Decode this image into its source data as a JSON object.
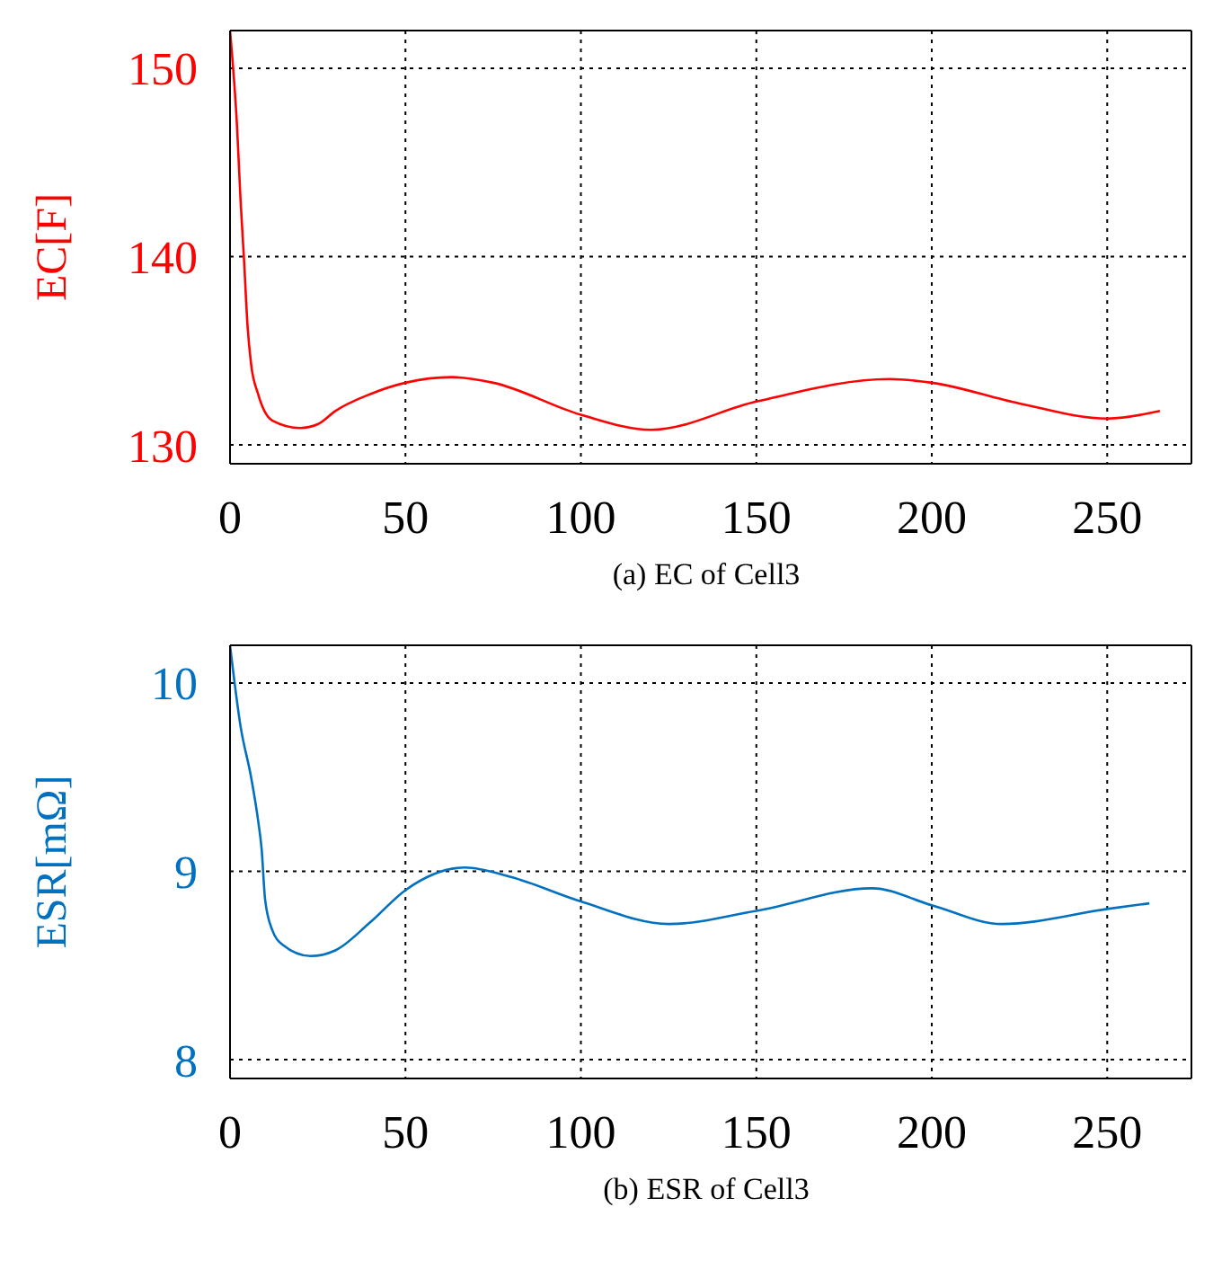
{
  "chart_data": [
    {
      "type": "line",
      "x": [
        0,
        2,
        3,
        4,
        5,
        6,
        8,
        12,
        20,
        25,
        30,
        40,
        50,
        63,
        75,
        100,
        120,
        150,
        188,
        200,
        225,
        250,
        265
      ],
      "series": [
        {
          "color": "#ff0000",
          "values": [
            152,
            146.9,
            143,
            139.8,
            136.3,
            134.3,
            132.7,
            131.3,
            130.9,
            131.1,
            131.8,
            132.7,
            133.3,
            133.6,
            133.3,
            131.6,
            130.8,
            132.3,
            133.5,
            133.3,
            132.2,
            131.4,
            131.8
          ]
        }
      ],
      "xlim": [
        0,
        274
      ],
      "xticks": [
        0,
        50,
        100,
        150,
        200,
        250
      ],
      "ylim": [
        129,
        152
      ],
      "yticks": [
        130,
        140,
        150
      ],
      "ylabel": "EC[F]",
      "grid": true,
      "annotations": [
        "(a) EC of Cell3"
      ]
    },
    {
      "type": "line",
      "x": [
        0,
        3,
        6,
        8,
        9,
        10,
        12,
        15,
        23,
        30,
        40,
        50,
        67,
        80,
        100,
        125,
        150,
        183,
        200,
        220,
        250,
        262
      ],
      "series": [
        {
          "color": "#0070c0",
          "values": [
            10.2,
            9.77,
            9.5,
            9.27,
            9.12,
            8.85,
            8.69,
            8.61,
            8.55,
            8.58,
            8.73,
            8.9,
            9.02,
            8.97,
            8.84,
            8.72,
            8.79,
            8.91,
            8.82,
            8.72,
            8.8,
            8.83
          ]
        }
      ],
      "xlim": [
        0,
        274
      ],
      "xticks": [
        0,
        50,
        100,
        150,
        200,
        250
      ],
      "ylim": [
        7.9,
        10.2
      ],
      "yticks": [
        8,
        9,
        10
      ],
      "ylabel": "ESR[mΩ]",
      "grid": true,
      "annotations": [
        "(b) ESR of Cell3"
      ]
    }
  ]
}
